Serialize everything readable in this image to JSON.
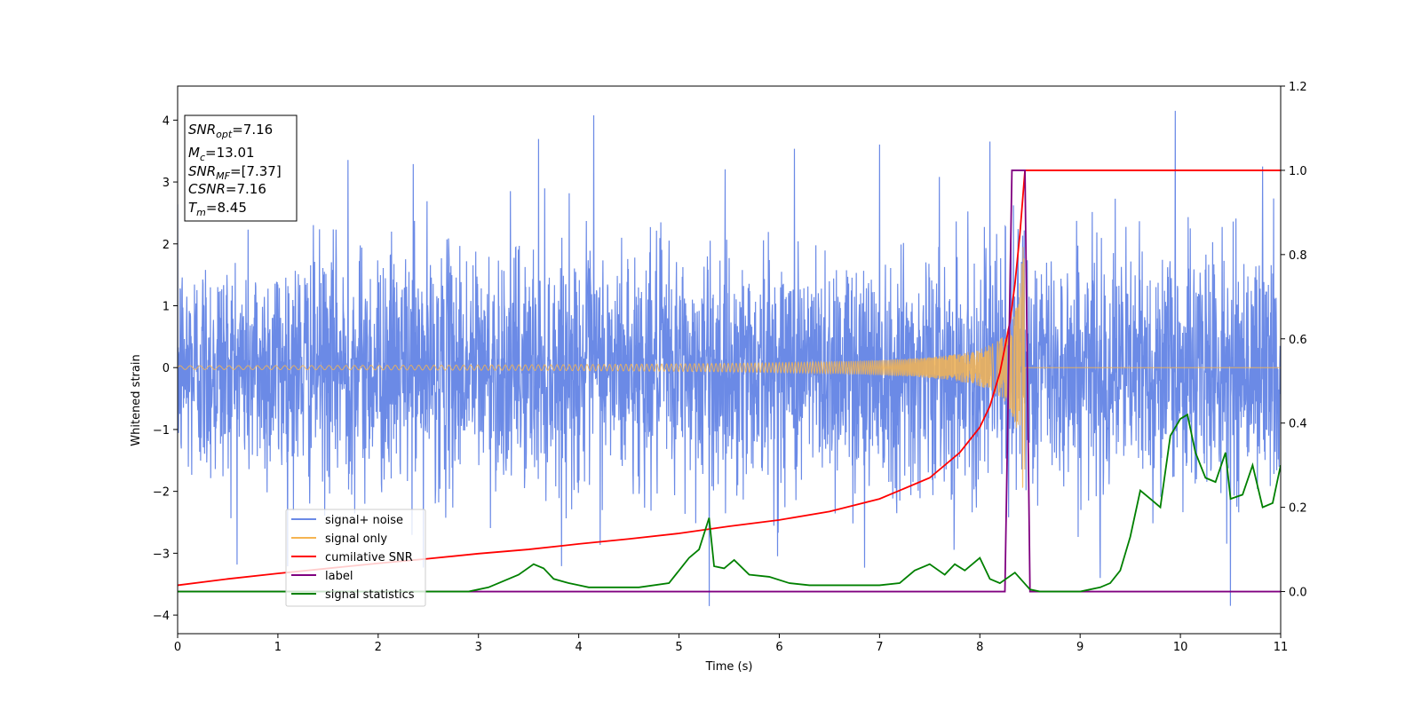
{
  "chart_data": {
    "type": "line",
    "title": "",
    "xlabel": "Time (s)",
    "ylabel": "Whitened strain",
    "xlim": [
      0,
      11
    ],
    "ylim": [
      -4.3,
      4.55
    ],
    "y2lim": [
      -0.1,
      1.2
    ],
    "x_ticks": [
      0,
      1,
      2,
      3,
      4,
      5,
      6,
      7,
      8,
      9,
      10,
      11
    ],
    "y_ticks": [
      -4,
      -3,
      -2,
      -1,
      0,
      1,
      2,
      3,
      4
    ],
    "y2_ticks": [
      0.0,
      0.2,
      0.4,
      0.6,
      0.8,
      1.0,
      1.2
    ],
    "grid": false,
    "legend_position": "lower-left",
    "colors": {
      "noise": "#6b8ae6",
      "signal": "#f5b451",
      "csnr": "#ff0000",
      "label": "#800080",
      "stats": "#008000"
    },
    "annotation": {
      "lines": [
        {
          "base": "SNR",
          "sub": "opt",
          "value": "=7.16"
        },
        {
          "base": "M",
          "sub": "c",
          "value": "=13.01"
        },
        {
          "base": "SNR",
          "sub": "MF",
          "value": "=[7.37]"
        },
        {
          "base": "CSNR",
          "sub": "",
          "value": "=7.16"
        },
        {
          "base": "T",
          "sub": "m",
          "value": "=8.45"
        }
      ]
    },
    "series": [
      {
        "name": "signal+ noise",
        "axis": "left",
        "style": "noise",
        "duration": 11,
        "sigma": 1.0,
        "spikes": [
          [
            1.7,
            3.35
          ],
          [
            2.35,
            3.3
          ],
          [
            3.6,
            3.65
          ],
          [
            4.15,
            4.05
          ],
          [
            5.3,
            -3.8
          ],
          [
            6.15,
            3.55
          ],
          [
            7.0,
            3.6
          ],
          [
            8.1,
            3.4
          ],
          [
            9.95,
            4.15
          ],
          [
            10.5,
            -3.85
          ],
          [
            10.82,
            3.25
          ],
          [
            2.45,
            -3.2
          ],
          [
            6.85,
            -3.3
          ],
          [
            9.2,
            -3.4
          ]
        ]
      },
      {
        "name": "signal only",
        "axis": "left",
        "style": "signal",
        "t_merge": 8.45,
        "amp_early": 0.03,
        "amp_peak": 1.95,
        "f_early": 20,
        "f_peak": 160
      },
      {
        "name": "cumilative SNR",
        "axis": "right",
        "style": "csnr",
        "x": [
          0,
          0.5,
          1,
          1.5,
          2,
          2.5,
          3,
          3.5,
          4,
          4.5,
          5,
          5.5,
          6,
          6.5,
          7,
          7.5,
          7.8,
          8.0,
          8.1,
          8.2,
          8.3,
          8.35,
          8.4,
          8.45,
          11
        ],
        "y": [
          0.015,
          0.03,
          0.043,
          0.055,
          0.067,
          0.078,
          0.09,
          0.1,
          0.113,
          0.125,
          0.138,
          0.155,
          0.17,
          0.19,
          0.22,
          0.27,
          0.33,
          0.39,
          0.44,
          0.52,
          0.64,
          0.73,
          0.85,
          1.0,
          1.0
        ]
      },
      {
        "name": "label",
        "axis": "right",
        "style": "label",
        "x": [
          0,
          8.25,
          8.32,
          8.45,
          8.5,
          11
        ],
        "y": [
          0,
          0,
          1,
          1,
          0,
          0
        ]
      },
      {
        "name": "signal statistics",
        "axis": "right",
        "style": "stats",
        "x": [
          0,
          0.5,
          1,
          1.5,
          2,
          2.5,
          2.9,
          3.1,
          3.2,
          3.3,
          3.4,
          3.55,
          3.65,
          3.75,
          3.9,
          4.0,
          4.1,
          4.3,
          4.6,
          4.9,
          5.1,
          5.2,
          5.3,
          5.35,
          5.45,
          5.55,
          5.7,
          5.9,
          6.1,
          6.3,
          6.6,
          7.0,
          7.2,
          7.35,
          7.5,
          7.65,
          7.75,
          7.85,
          8.0,
          8.1,
          8.2,
          8.35,
          8.5,
          8.6,
          8.8,
          9.0,
          9.2,
          9.3,
          9.4,
          9.5,
          9.6,
          9.7,
          9.8,
          9.9,
          10.0,
          10.07,
          10.15,
          10.25,
          10.35,
          10.45,
          10.5,
          10.62,
          10.72,
          10.82,
          10.92,
          11.0
        ],
        "y": [
          0.0,
          0.0,
          0.0,
          0.0,
          0.0,
          0.0,
          0.0,
          0.01,
          0.02,
          0.03,
          0.04,
          0.065,
          0.055,
          0.03,
          0.02,
          0.015,
          0.01,
          0.01,
          0.01,
          0.02,
          0.08,
          0.1,
          0.175,
          0.06,
          0.055,
          0.075,
          0.04,
          0.035,
          0.02,
          0.015,
          0.015,
          0.015,
          0.02,
          0.05,
          0.065,
          0.04,
          0.065,
          0.05,
          0.08,
          0.03,
          0.02,
          0.045,
          0.005,
          0.0,
          0.0,
          0.0,
          0.01,
          0.02,
          0.05,
          0.13,
          0.24,
          0.22,
          0.2,
          0.37,
          0.41,
          0.42,
          0.33,
          0.27,
          0.26,
          0.33,
          0.22,
          0.23,
          0.3,
          0.2,
          0.21,
          0.3
        ]
      }
    ]
  }
}
